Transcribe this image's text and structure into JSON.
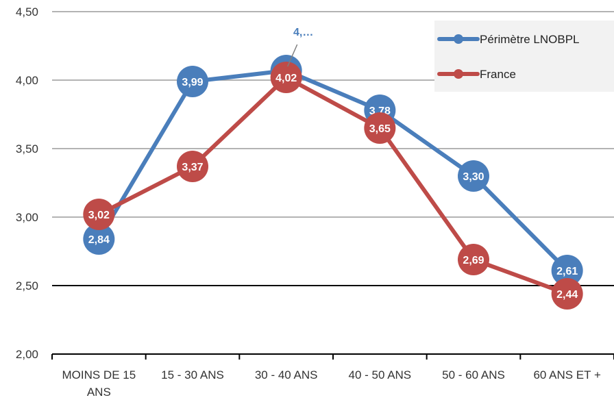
{
  "chart_data": {
    "type": "line",
    "categories": [
      "MOINS DE 15 ANS",
      "15 - 30 ANS",
      "30 - 40 ANS",
      "40 - 50 ANS",
      "50 - 60 ANS",
      "60 ANS ET +"
    ],
    "category_lines": [
      [
        "MOINS DE 15",
        "ANS"
      ],
      [
        "15 - 30 ANS"
      ],
      [
        "30 - 40 ANS"
      ],
      [
        "40 - 50 ANS"
      ],
      [
        "50 - 60 ANS"
      ],
      [
        "60 ANS ET +"
      ]
    ],
    "ylim": [
      2.0,
      4.5
    ],
    "yticks": [
      "2,00",
      "2,50",
      "3,00",
      "3,50",
      "4,00",
      "4,50"
    ],
    "ytick_values": [
      2.0,
      2.5,
      3.0,
      3.5,
      4.0,
      4.5
    ],
    "grid": true,
    "legend_position": "top-right",
    "series": [
      {
        "name": "Périmètre LNOBPL",
        "color": "#4A7EBB",
        "values": [
          2.84,
          3.99,
          4.07,
          3.78,
          3.3,
          2.61
        ],
        "labels": [
          "2,84",
          "3,99",
          "",
          "3,78",
          "3,30",
          "2,61"
        ]
      },
      {
        "name": "France",
        "color": "#BE4B48",
        "values": [
          3.02,
          3.37,
          4.02,
          3.65,
          2.69,
          2.44
        ],
        "labels": [
          "3,02",
          "3,37",
          "4,02",
          "3,65",
          "2,69",
          "2,44"
        ]
      }
    ],
    "annotation": {
      "text": "4,…",
      "series": 0,
      "index": 2
    }
  }
}
